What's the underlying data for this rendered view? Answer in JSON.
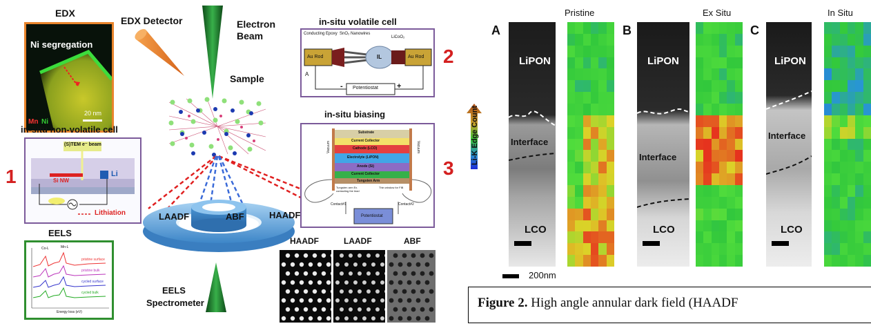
{
  "left_figure": {
    "edx_title": "EDX",
    "edx_detector": "EDX Detector",
    "edx_inset_text": "Ni segregation",
    "edx_scale": "20 nm",
    "edx_legend_mn": "Mn",
    "edx_legend_ni": "Ni",
    "electron_beam": "Electron Beam",
    "sample": "Sample",
    "volatile_title": "in-situ volatile cell",
    "volatile_labels": [
      "Conducting Epoxy",
      "SnO₂ Nanowires",
      "LiCoO₂",
      "Au Rod",
      "IL",
      "Au Rod",
      "A",
      "Potentiostat",
      "-",
      "+"
    ],
    "num_1": "1",
    "num_2": "2",
    "num_3": "3",
    "nonvolatile_title": "in-situ non-volatile cell",
    "nonvolatile_labels": [
      "(S)TEM e⁻ beam",
      "Si NW",
      "Li",
      "Lithiation"
    ],
    "biasing_title": "in-situ biasing",
    "biasing_layers": [
      "Substrate",
      "Current Collector",
      "Cathode (LCO)",
      "Electrolyte (LiPON)",
      "Anode (Si)",
      "Current Collector",
      "Tungsten Arm"
    ],
    "biasing_labels": [
      "Vacuum",
      "Vacuum",
      "Tungsten arm Ex. contacting the lead",
      "Thin window for FIB",
      "Contact#1",
      "Contact#2",
      "Potentiostat"
    ],
    "detectors": [
      "LAADF",
      "ABF",
      "HAADF"
    ],
    "eels_title": "EELS",
    "eels_plot_labels": [
      "Co-L",
      "Mn-L",
      "pristine surface",
      "pristine bulk",
      "cycled surface",
      "cycled bulk",
      "Energy loss (eV)"
    ],
    "eels_spectrometer": "EELS Spectrometer",
    "stem_titles": [
      "HAADF",
      "LAADF",
      "ABF"
    ]
  },
  "right_figure": {
    "column_titles": [
      "Pristine",
      "Ex Situ",
      "In Situ"
    ],
    "panel_letters": [
      "A",
      "B",
      "C"
    ],
    "lipon": "LiPON",
    "interface": "Interface",
    "lco": "LCO",
    "colorbar_label": "Li-K Edge Count",
    "scale_label": "200nm",
    "caption_bold": "Figure 2.",
    "caption_text": " High angle annular dark field (HAADF"
  },
  "colors": {
    "red_number": "#d42020",
    "orange_box": "#e8842c",
    "purple_box": "#7b5a9a",
    "green_box": "#2f8f2f",
    "detector_blue": "#5aa4dc",
    "beam_green": "#1f7a2c"
  }
}
